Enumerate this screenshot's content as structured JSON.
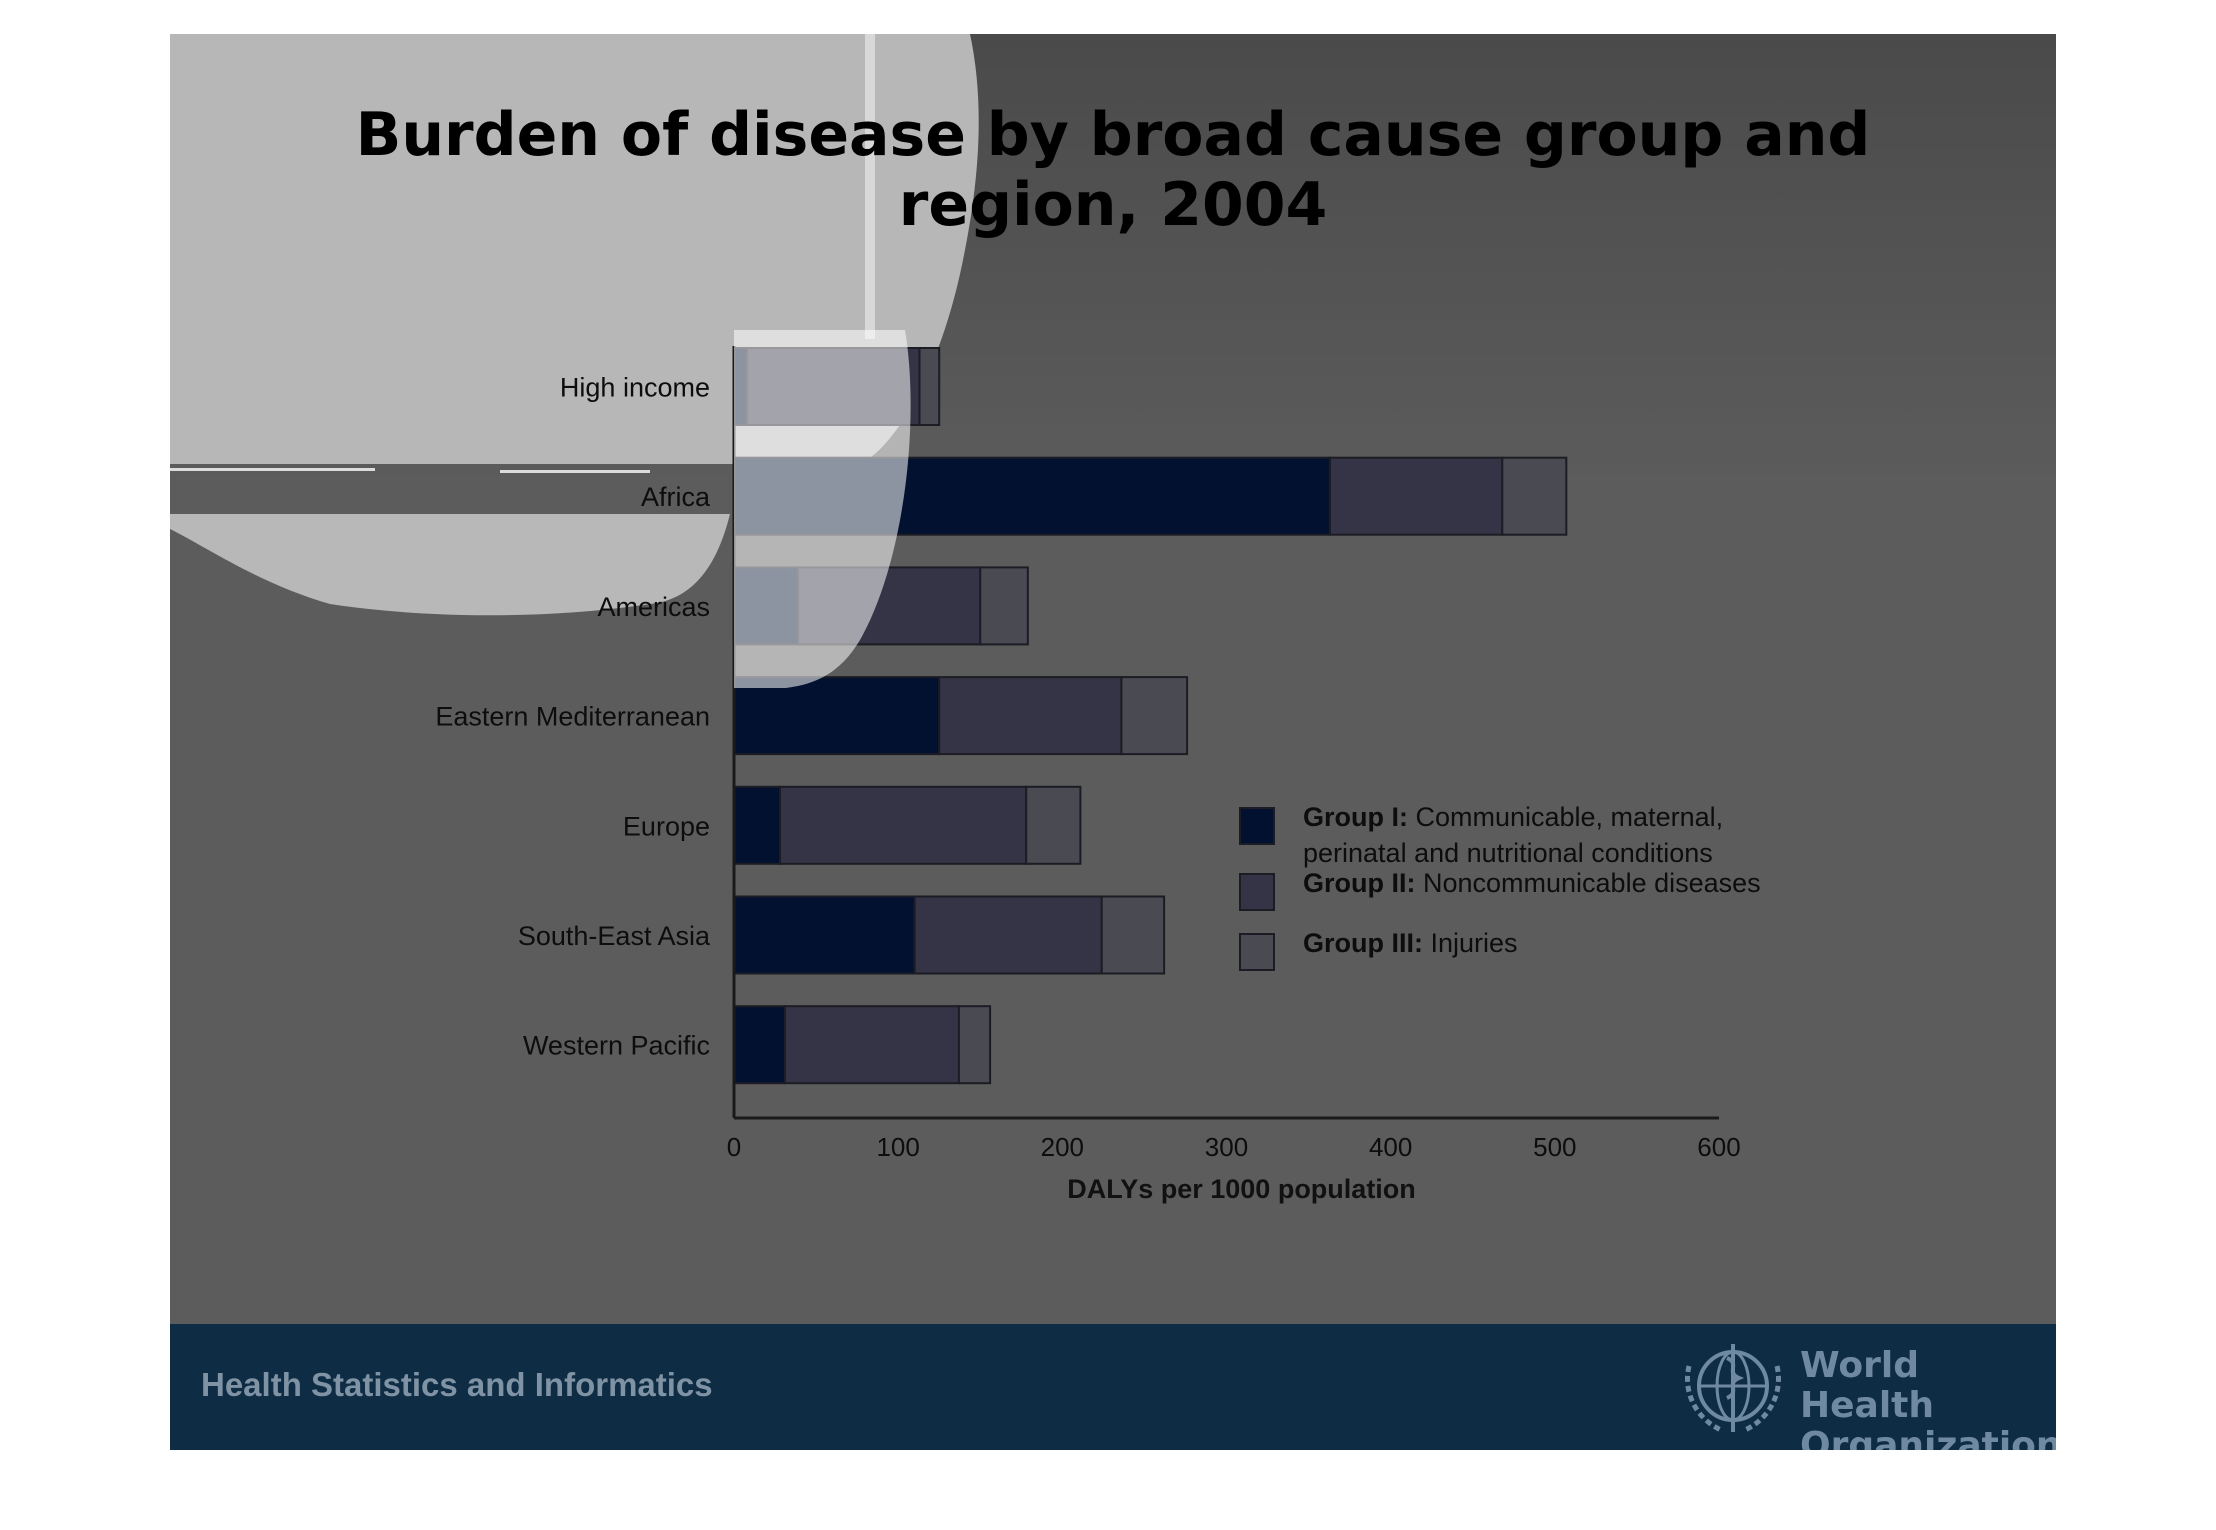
{
  "slide": {
    "title_line1": "Burden of disease by broad cause group and",
    "title_line2": "region, 2004",
    "footer_text": "Health Statistics and Informatics",
    "org_line1": "World Health",
    "org_line2": "Organization",
    "org_logo_icon": "who-emblem-icon"
  },
  "colors": {
    "background": "#5c5c5c",
    "footer": "#0e2c44",
    "group1": "#02112f",
    "group2": "#343446",
    "group3": "#4a4a52"
  },
  "chart_data": {
    "type": "bar",
    "orientation": "horizontal",
    "stacked": true,
    "categories": [
      "High income",
      "Africa",
      "Americas",
      "Eastern Mediterranean",
      "Europe",
      "South-East Asia",
      "Western Pacific"
    ],
    "series": [
      {
        "name": "Group I: Communicable, maternal, perinatal and nutritional conditions",
        "legend_bold": "Group I:",
        "legend_rest_line1": "Communicable, maternal,",
        "legend_rest_line2": "perinatal and nutritional conditions",
        "values": [
          8,
          363,
          39,
          125,
          28,
          110,
          31
        ]
      },
      {
        "name": "Group II: Noncommunicable diseases",
        "legend_bold": "Group II:",
        "legend_rest_line1": "Noncommunicable diseases",
        "values": [
          105,
          105,
          111,
          111,
          150,
          114,
          106
        ]
      },
      {
        "name": "Group III: Injuries",
        "legend_bold": "Group III:",
        "legend_rest_line1": "Injuries",
        "values": [
          12,
          39,
          29,
          40,
          33,
          38,
          19
        ]
      }
    ],
    "xlabel": "DALYs per 1000 population",
    "ylabel": "",
    "xlim": [
      0,
      600
    ],
    "xticks": [
      0,
      100,
      200,
      300,
      400,
      500,
      600
    ],
    "grid": false,
    "legend_position": "right"
  }
}
